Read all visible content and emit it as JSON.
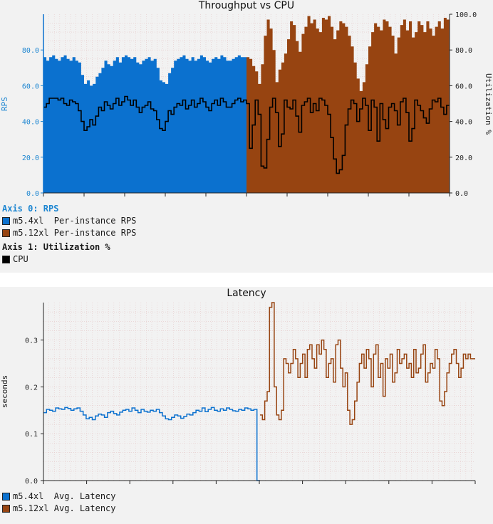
{
  "colors": {
    "m5_4xl": "#0b71cf",
    "m5_12xl": "#974411",
    "cpu": "#000000"
  },
  "chart_data": [
    {
      "type": "area",
      "title": "Throughput vs CPU",
      "ylabel": "RPS",
      "y2label": "Utilization %",
      "ylim": [
        0,
        100
      ],
      "y2lim": [
        0,
        100
      ],
      "yticks": [
        "0.0",
        "20.0",
        "40.0",
        "60.0",
        "80.0"
      ],
      "y2ticks": [
        "0.0",
        "20.0",
        "40.0",
        "60.0",
        "80.0",
        "100.0"
      ],
      "grid": true,
      "series": [
        {
          "name": "m5.4xl  Per-instance RPS",
          "axis": 0,
          "values": [
            76,
            74,
            76,
            77,
            75,
            74,
            76,
            77,
            75,
            74,
            76,
            74,
            73,
            66,
            61,
            63,
            60,
            61,
            65,
            67,
            70,
            74,
            72,
            71,
            74,
            76,
            73,
            76,
            77,
            76,
            75,
            76,
            73,
            72,
            74,
            75,
            76,
            74,
            75,
            70,
            63,
            62,
            61,
            67,
            70,
            74,
            75,
            76,
            77,
            75,
            74,
            76,
            74,
            75,
            77,
            76,
            74,
            73,
            75,
            76,
            75,
            77,
            76,
            74,
            74,
            75,
            76,
            77,
            76,
            76
          ]
        },
        {
          "name": "m5.12xl Per-instance RPS",
          "axis": 0,
          "values": [
            76,
            75,
            71,
            68,
            61,
            72,
            88,
            97,
            92,
            80,
            62,
            69,
            73,
            78,
            86,
            96,
            94,
            85,
            79,
            89,
            93,
            99,
            95,
            97,
            92,
            90,
            98,
            97,
            99,
            93,
            86,
            91,
            96,
            95,
            93,
            88,
            82,
            73,
            64,
            57,
            62,
            72,
            82,
            90,
            95,
            93,
            91,
            97,
            96,
            93,
            88,
            78,
            87,
            94,
            97,
            91,
            96,
            87,
            90,
            96,
            94,
            90,
            96,
            92,
            88,
            93,
            96,
            92,
            98,
            97
          ]
        },
        {
          "name": "CPU",
          "axis": 1,
          "values": [
            48,
            50,
            53,
            53,
            53,
            52,
            53,
            50,
            49,
            52,
            51,
            50,
            46,
            40,
            35,
            37,
            41,
            38,
            43,
            48,
            46,
            51,
            49,
            47,
            50,
            53,
            49,
            51,
            54,
            52,
            49,
            52,
            48,
            45,
            48,
            49,
            51,
            47,
            46,
            41,
            36,
            35,
            40,
            46,
            44,
            48,
            50,
            49,
            52,
            47,
            49,
            52,
            48,
            50,
            53,
            51,
            48,
            46,
            50,
            52,
            49,
            53,
            51,
            48,
            48,
            50,
            52,
            53,
            51,
            52,
            50,
            25,
            38,
            52,
            44,
            15,
            14,
            30,
            48,
            53,
            45,
            26,
            33,
            52,
            48,
            47,
            52,
            43,
            34,
            49,
            51,
            53,
            45,
            50,
            46,
            53,
            52,
            49,
            44,
            31,
            19,
            11,
            13,
            21,
            38,
            47,
            52,
            50,
            40,
            47,
            53,
            49,
            35,
            52,
            48,
            29,
            50,
            41,
            36,
            48,
            50,
            46,
            38,
            51,
            53,
            45,
            29,
            36,
            52,
            49,
            46,
            42,
            39,
            47,
            52,
            51,
            53,
            48,
            44,
            49
          ]
        }
      ]
    },
    {
      "type": "line",
      "title": "Latency",
      "ylabel": "seconds",
      "ylim": [
        0,
        0.38
      ],
      "yticks": [
        "0.0",
        "0.1",
        "0.2",
        "0.3"
      ],
      "grid": true,
      "series": [
        {
          "name": "m5.4xl  Avg. Latency",
          "values": [
            0.145,
            0.152,
            0.15,
            0.148,
            0.155,
            0.153,
            0.152,
            0.156,
            0.154,
            0.15,
            0.153,
            0.155,
            0.148,
            0.14,
            0.132,
            0.135,
            0.13,
            0.138,
            0.142,
            0.14,
            0.135,
            0.145,
            0.148,
            0.143,
            0.14,
            0.146,
            0.15,
            0.152,
            0.148,
            0.155,
            0.15,
            0.145,
            0.152,
            0.148,
            0.146,
            0.15,
            0.148,
            0.152,
            0.145,
            0.138,
            0.132,
            0.13,
            0.135,
            0.14,
            0.138,
            0.133,
            0.137,
            0.142,
            0.14,
            0.145,
            0.15,
            0.148,
            0.155,
            0.147,
            0.152,
            0.156,
            0.15,
            0.148,
            0.153,
            0.15,
            0.155,
            0.152,
            0.149,
            0.148,
            0.152,
            0.15,
            0.155,
            0.153,
            0.15,
            0.152,
            0.0
          ]
        },
        {
          "name": "m5.12xl Avg. Latency",
          "values": [
            0.14,
            0.13,
            0.17,
            0.19,
            0.37,
            0.38,
            0.2,
            0.14,
            0.13,
            0.15,
            0.26,
            0.25,
            0.23,
            0.25,
            0.28,
            0.26,
            0.22,
            0.25,
            0.27,
            0.22,
            0.28,
            0.29,
            0.26,
            0.24,
            0.29,
            0.27,
            0.3,
            0.28,
            0.22,
            0.25,
            0.26,
            0.21,
            0.29,
            0.3,
            0.24,
            0.2,
            0.23,
            0.15,
            0.12,
            0.13,
            0.17,
            0.21,
            0.25,
            0.27,
            0.24,
            0.28,
            0.26,
            0.2,
            0.27,
            0.29,
            0.22,
            0.25,
            0.18,
            0.26,
            0.24,
            0.27,
            0.21,
            0.23,
            0.28,
            0.25,
            0.26,
            0.27,
            0.24,
            0.25,
            0.22,
            0.28,
            0.23,
            0.24,
            0.27,
            0.29,
            0.21,
            0.23,
            0.25,
            0.24,
            0.28,
            0.26,
            0.17,
            0.16,
            0.19,
            0.23,
            0.25,
            0.27,
            0.28,
            0.25,
            0.22,
            0.24,
            0.27,
            0.26,
            0.27,
            0.26,
            0.26
          ]
        }
      ]
    }
  ],
  "legend1": {
    "axis0_header": "Axis 0: RPS",
    "axis0_items": [
      "m5.4xl  Per-instance RPS",
      "m5.12xl Per-instance RPS"
    ],
    "axis1_header": "Axis 1: Utilization %",
    "axis1_items": [
      "CPU"
    ]
  },
  "legend2": {
    "items": [
      "m5.4xl  Avg. Latency",
      "m5.12xl Avg. Latency"
    ]
  }
}
